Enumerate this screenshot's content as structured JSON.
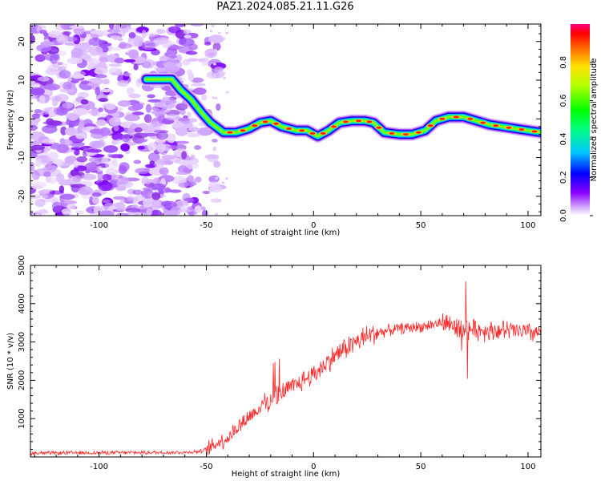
{
  "title": "PAZ1.2024.085.21.11.G26",
  "chart_data": [
    {
      "type": "heatmap",
      "xlabel": "Height of straight line (km)",
      "ylabel": "Frequency (Hz)",
      "xlim": [
        -132,
        106
      ],
      "ylim": [
        -25,
        24.5
      ],
      "xticks": [
        -100,
        -50,
        0,
        50,
        100
      ],
      "yticks": [
        -20,
        -10,
        0,
        10,
        20
      ],
      "noise_region_x": [
        -132,
        -48
      ],
      "ridge": [
        [
          -78,
          10.2
        ],
        [
          -66,
          10.2
        ],
        [
          -62,
          7.5
        ],
        [
          -57,
          5
        ],
        [
          -52,
          1.5
        ],
        [
          -48,
          -1
        ],
        [
          -42,
          -3.5
        ],
        [
          -36,
          -3.5
        ],
        [
          -30,
          -2.5
        ],
        [
          -25,
          -1
        ],
        [
          -20,
          -0.5
        ],
        [
          -15,
          -2
        ],
        [
          -8,
          -3
        ],
        [
          -3,
          -3
        ],
        [
          2,
          -4.5
        ],
        [
          7,
          -3
        ],
        [
          12,
          -1
        ],
        [
          18,
          -0.5
        ],
        [
          24,
          -0.5
        ],
        [
          28,
          -1
        ],
        [
          33,
          -3.5
        ],
        [
          40,
          -4
        ],
        [
          46,
          -4
        ],
        [
          52,
          -3
        ],
        [
          57,
          -0.5
        ],
        [
          63,
          0.5
        ],
        [
          70,
          0.5
        ],
        [
          76,
          -0.5
        ],
        [
          82,
          -1.5
        ],
        [
          88,
          -2
        ],
        [
          94,
          -2.5
        ],
        [
          100,
          -3
        ],
        [
          106,
          -3.5
        ]
      ],
      "colorbar": {
        "label": "Normalized spectral amplitude",
        "ticks": [
          "0.0",
          "0.2",
          "0.4",
          "0.6",
          "0.8"
        ]
      }
    },
    {
      "type": "line",
      "xlabel": "Height of straight line (km)",
      "ylabel": "SNR (10 * v/v)",
      "xlim": [
        -132,
        106
      ],
      "ylim": [
        0,
        5000
      ],
      "xticks": [
        -100,
        -50,
        0,
        50,
        100
      ],
      "yticks": [
        1000,
        2000,
        3000,
        4000,
        5000
      ],
      "series": [
        {
          "color": "#ff0000",
          "profile": [
            [
              -132,
              100
            ],
            [
              -60,
              120
            ],
            [
              -52,
              150
            ],
            [
              -48,
              250
            ],
            [
              -44,
              400
            ],
            [
              -40,
              500
            ],
            [
              -35,
              800
            ],
            [
              -30,
              1050
            ],
            [
              -25,
              1300
            ],
            [
              -20,
              1500
            ],
            [
              -15,
              1700
            ],
            [
              -10,
              1800
            ],
            [
              -5,
              2000
            ],
            [
              0,
              2150
            ],
            [
              5,
              2400
            ],
            [
              10,
              2650
            ],
            [
              15,
              2850
            ],
            [
              20,
              3000
            ],
            [
              25,
              3150
            ],
            [
              30,
              3250
            ],
            [
              35,
              3300
            ],
            [
              40,
              3350
            ],
            [
              50,
              3400
            ],
            [
              55,
              3450
            ],
            [
              60,
              3500
            ],
            [
              70,
              3350
            ],
            [
              80,
              3300
            ],
            [
              90,
              3300
            ],
            [
              100,
              3250
            ],
            [
              106,
              3250
            ]
          ]
        }
      ]
    }
  ]
}
